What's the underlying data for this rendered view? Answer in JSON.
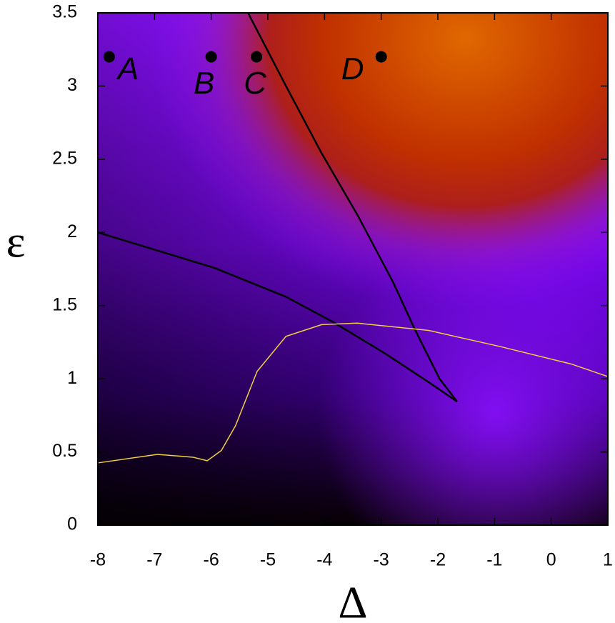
{
  "chart_data": {
    "type": "line",
    "xlabel": "Δ",
    "ylabel": "ε",
    "xlim": [
      -8,
      1
    ],
    "ylim": [
      0,
      3.5
    ],
    "xticks": [
      -8,
      -7,
      -6,
      -5,
      -4,
      -3,
      -2,
      -1,
      0,
      1
    ],
    "yticks": [
      0,
      0.5,
      1,
      1.5,
      2,
      2.5,
      3,
      3.5
    ],
    "lines": [
      {
        "color": "#000000",
        "x": [
          -8,
          -5.94,
          -4.68,
          -3.86,
          -2.92,
          -2.16,
          -1.66
        ],
        "y": [
          2.0,
          1.757,
          1.56,
          1.39,
          1.17,
          0.976,
          0.844
        ]
      },
      {
        "color": "#000000",
        "x": [
          -5.35,
          -4.68,
          -4.05,
          -3.42,
          -2.79,
          -2.41,
          -1.97,
          -1.66
        ],
        "y": [
          3.5,
          3.0,
          2.54,
          2.12,
          1.66,
          1.34,
          1.0,
          0.844
        ]
      },
      {
        "color": "#f0d040",
        "x": [
          -8,
          -6.95,
          -6.32,
          -6.07,
          -5.82,
          -5.57,
          -5.19,
          -4.68,
          -4.05,
          -3.42,
          -2.16,
          -0.9,
          0.36,
          1
        ],
        "y": [
          0.425,
          0.483,
          0.464,
          0.44,
          0.51,
          0.68,
          1.05,
          1.29,
          1.37,
          1.38,
          1.33,
          1.22,
          1.1,
          1.015
        ]
      }
    ],
    "points": {
      "color": "#000000",
      "x": [
        -7.8,
        -6,
        -5.2,
        -3
      ],
      "y": [
        3.2,
        3.2,
        3.2,
        3.2
      ],
      "labels": [
        "A",
        "B",
        "C",
        "D"
      ]
    }
  }
}
